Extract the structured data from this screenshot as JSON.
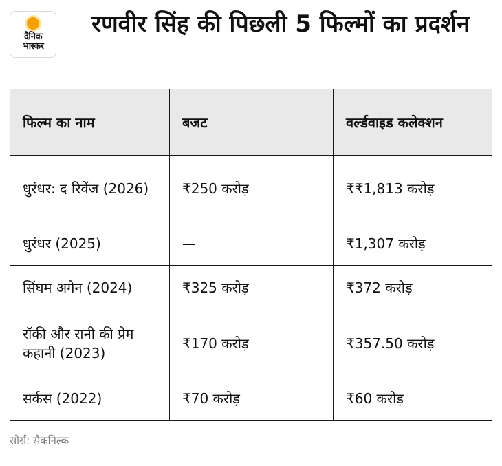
{
  "logo": {
    "line1": "दैनिक",
    "line2": "भास्कर"
  },
  "title": "रणवीर सिंह की पिछली 5 फिल्मों का प्रदर्शन",
  "table": {
    "headers": [
      "फिल्म का नाम",
      "बजट",
      "वर्ल्डवाइड कलेक्शन"
    ],
    "rows": [
      {
        "film": "धुरंधर: द रिवेंज (2026)",
        "budget": "₹250 करोड़",
        "collection": "₹₹1,813 करोड़"
      },
      {
        "film": "धुरंधर (2025)",
        "budget": "—",
        "collection": "₹1,307 करोड़"
      },
      {
        "film": "सिंघम अगेन (2024)",
        "budget": "₹325 करोड़",
        "collection": "₹372 करोड़"
      },
      {
        "film": "रॉकी और रानी की प्रेम कहानी (2023)",
        "budget": "₹170 करोड़",
        "collection": "₹357.50 करोड़"
      },
      {
        "film": "सर्कस (2022)",
        "budget": "₹70 करोड़",
        "collection": "₹60 करोड़"
      }
    ]
  },
  "source": "सोर्स: सैकनिल्क"
}
